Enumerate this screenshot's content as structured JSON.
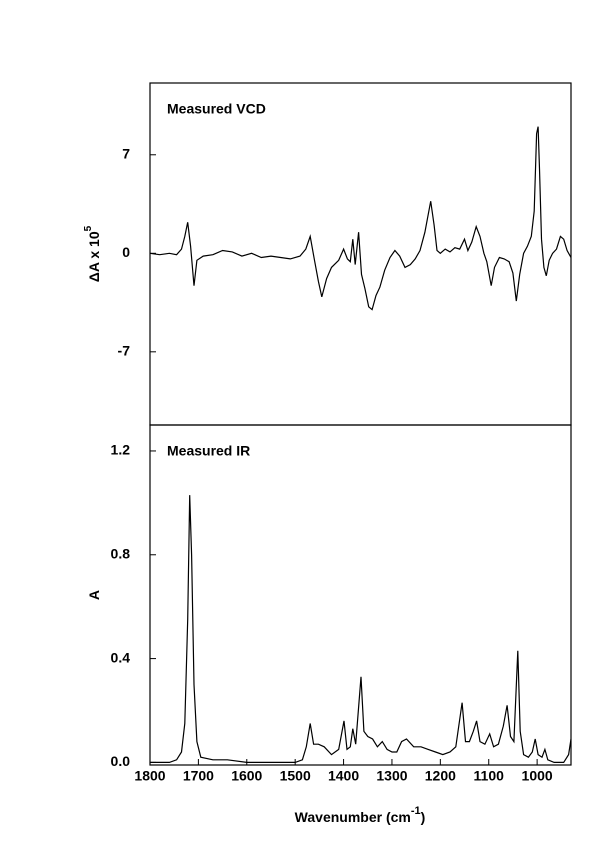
{
  "chart_data": [
    {
      "type": "line",
      "annotation": "Measured VCD",
      "ylabel": [
        "ΔA x 10",
        "5"
      ],
      "xlim": [
        1800,
        930
      ],
      "ylim": [
        -12.2,
        12.1
      ],
      "yticks": [
        -7,
        0,
        7
      ],
      "color": "#000000",
      "x": [
        1800,
        1780,
        1760,
        1745,
        1735,
        1728,
        1722,
        1716,
        1709,
        1703,
        1690,
        1670,
        1650,
        1630,
        1610,
        1590,
        1570,
        1550,
        1530,
        1510,
        1490,
        1478,
        1469,
        1460,
        1452,
        1445,
        1435,
        1425,
        1410,
        1400,
        1392,
        1386,
        1381,
        1376,
        1369,
        1363,
        1356,
        1348,
        1341,
        1333,
        1325,
        1315,
        1304,
        1294,
        1284,
        1273,
        1262,
        1252,
        1242,
        1232,
        1220,
        1213,
        1207,
        1200,
        1190,
        1180,
        1170,
        1160,
        1150,
        1143,
        1135,
        1126,
        1118,
        1110,
        1104,
        1095,
        1088,
        1078,
        1068,
        1058,
        1050,
        1043,
        1036,
        1028,
        1020,
        1012,
        1006,
        1001,
        998,
        995,
        991,
        986,
        981,
        975,
        968,
        960,
        952,
        945,
        938,
        930
      ],
      "values": [
        0,
        -0.1,
        0,
        -0.1,
        0.3,
        1.2,
        2.2,
        0.5,
        -2.3,
        -0.5,
        -0.2,
        -0.1,
        0.2,
        0.1,
        -0.2,
        0,
        -0.3,
        -0.2,
        -0.3,
        -0.4,
        -0.2,
        0.3,
        1.2,
        -0.5,
        -2.0,
        -3.1,
        -1.8,
        -1.0,
        -0.5,
        0.3,
        -0.4,
        -0.6,
        1.0,
        -0.8,
        1.5,
        -1.5,
        -2.5,
        -3.8,
        -4.0,
        -3.0,
        -2.4,
        -1.2,
        -0.3,
        0.2,
        -0.2,
        -1.0,
        -0.8,
        -0.4,
        0.2,
        1.5,
        3.7,
        2.0,
        0.2,
        0,
        0.3,
        0.1,
        0.4,
        0.3,
        1.0,
        0.2,
        0.8,
        1.9,
        1.2,
        0,
        -0.6,
        -2.3,
        -1.0,
        -0.3,
        -0.4,
        -0.6,
        -1.4,
        -3.4,
        -1.5,
        0,
        0.5,
        1.2,
        3,
        8.5,
        9.0,
        6,
        1,
        -1,
        -1.6,
        -0.5,
        0,
        0.3,
        1.2,
        1.0,
        0.2,
        -0.3
      ]
    },
    {
      "type": "line",
      "annotation": "Measured IR",
      "ylabel": [
        "A"
      ],
      "xlabel": [
        "Wavenumber (cm",
        "-1",
        ")"
      ],
      "xlim": [
        1800,
        930
      ],
      "ylim": [
        -0.01,
        1.3
      ],
      "color": "#000000",
      "xticks": [
        1800,
        1700,
        1600,
        1500,
        1400,
        1300,
        1200,
        1100,
        1000
      ],
      "yticks": [
        {
          "value": 0,
          "label": "0.0"
        },
        0.4,
        0.8,
        1.2
      ],
      "x": [
        1800,
        1760,
        1745,
        1735,
        1728,
        1722,
        1718,
        1714,
        1709,
        1703,
        1695,
        1670,
        1640,
        1600,
        1500,
        1485,
        1477,
        1469,
        1462,
        1452,
        1440,
        1425,
        1410,
        1399,
        1393,
        1386,
        1381,
        1375,
        1364,
        1358,
        1350,
        1340,
        1330,
        1320,
        1310,
        1300,
        1290,
        1280,
        1270,
        1255,
        1240,
        1225,
        1210,
        1195,
        1180,
        1168,
        1155,
        1148,
        1140,
        1132,
        1125,
        1118,
        1108,
        1098,
        1090,
        1080,
        1070,
        1062,
        1055,
        1048,
        1040,
        1035,
        1028,
        1018,
        1010,
        1004,
        998,
        990,
        984,
        978,
        965,
        945,
        935,
        930
      ],
      "values": [
        0,
        0,
        0.01,
        0.04,
        0.15,
        0.55,
        1.03,
        0.8,
        0.3,
        0.08,
        0.02,
        0.01,
        0.01,
        0,
        0,
        0.01,
        0.06,
        0.15,
        0.07,
        0.07,
        0.06,
        0.03,
        0.05,
        0.16,
        0.05,
        0.06,
        0.13,
        0.07,
        0.33,
        0.12,
        0.1,
        0.09,
        0.06,
        0.08,
        0.05,
        0.04,
        0.04,
        0.08,
        0.09,
        0.06,
        0.06,
        0.05,
        0.04,
        0.03,
        0.04,
        0.06,
        0.23,
        0.08,
        0.08,
        0.12,
        0.16,
        0.08,
        0.07,
        0.11,
        0.06,
        0.07,
        0.14,
        0.22,
        0.1,
        0.08,
        0.43,
        0.12,
        0.03,
        0.02,
        0.04,
        0.09,
        0.03,
        0.02,
        0.05,
        0.01,
        0,
        0,
        0.03,
        0.09
      ]
    }
  ]
}
